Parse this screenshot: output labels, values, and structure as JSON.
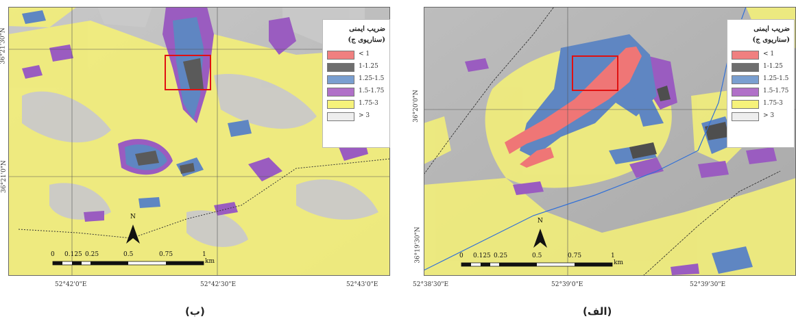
{
  "legend": {
    "title_line1": "ضریب ایمنی",
    "title_line2": "(سناریوی ج)",
    "classes": [
      {
        "label": "< 1",
        "color": "#f08080"
      },
      {
        "label": "1-1.25",
        "color": "#6e6e6e"
      },
      {
        "label": "1.25-1.5",
        "color": "#7a9fd0"
      },
      {
        "label": "1.5-1.75",
        "color": "#b070c8"
      },
      {
        "label": "1.75-3",
        "color": "#f6f27a"
      },
      {
        "label": "> 3",
        "color": "#eeeeee"
      }
    ]
  },
  "panel_b": {
    "caption": "(ب)",
    "lat_labels": [
      "36°21'30\"N",
      "36°21'0\"N"
    ],
    "lon_labels": [
      "52°42'0\"E",
      "52°42'30\"E",
      "52°43'0\"E"
    ],
    "scalebar": {
      "ticks": [
        "0",
        "0.125",
        "0.25",
        "0.5",
        "0.75",
        "1"
      ],
      "unit": "km"
    },
    "north_label": "N"
  },
  "panel_a": {
    "caption": "(الف)",
    "lat_labels": [
      "36°20'0\"N",
      "36°19'30\"N"
    ],
    "lon_labels": [
      "52°38'30\"E",
      "52°39'0\"E",
      "52°39'30\"E"
    ],
    "scalebar": {
      "ticks": [
        "0",
        "0.125",
        "0.25",
        "0.5",
        "0.75",
        "1"
      ],
      "unit": "km"
    },
    "north_label": "N"
  }
}
